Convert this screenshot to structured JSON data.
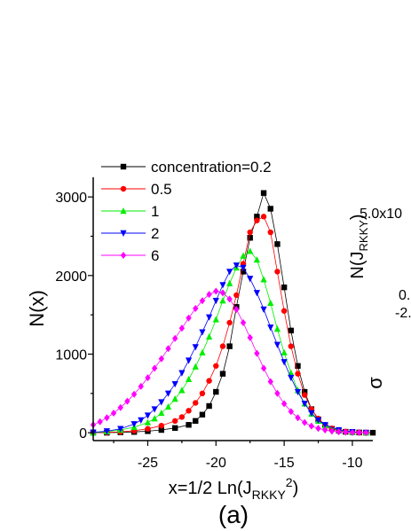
{
  "chart_data": {
    "type": "line",
    "xlabel_main": "x=1/2 Ln(J",
    "xlabel_sub": "RKKY",
    "xlabel_sup": "2",
    "xlabel_close": ")",
    "ylabel": "N(x)",
    "panel_label": "(a)",
    "xlim": [
      -29,
      -8.5
    ],
    "ylim": [
      -100,
      3250
    ],
    "x_ticks": [
      -25,
      -20,
      -15,
      -10
    ],
    "x_tick_labels": [
      "-25",
      "-20",
      "-15",
      "-10"
    ],
    "y_ticks": [
      0,
      1000,
      2000,
      3000
    ],
    "y_tick_labels": [
      "0",
      "1000",
      "2000",
      "3000"
    ],
    "legend_position": "top-left",
    "series": [
      {
        "name": "concentration=0.2",
        "color": "#000000",
        "marker": "square",
        "x": [
          -29,
          -28,
          -27,
          -26,
          -25,
          -24,
          -23,
          -22,
          -21.5,
          -21,
          -20.5,
          -20,
          -19.5,
          -19,
          -18.5,
          -18,
          -17.5,
          -17,
          -16.5,
          -16,
          -15.5,
          -15,
          -14.5,
          -14,
          -13.5,
          -13,
          -12.5,
          -12,
          -11.5,
          -11,
          -10.5,
          -10,
          -9.5,
          -9,
          -8.5
        ],
        "y": [
          0,
          0,
          5,
          10,
          20,
          35,
          60,
          100,
          150,
          230,
          340,
          520,
          750,
          1100,
          1600,
          2050,
          2480,
          2750,
          3050,
          2850,
          2400,
          1850,
          1300,
          850,
          520,
          300,
          170,
          90,
          50,
          25,
          12,
          6,
          3,
          1,
          0
        ]
      },
      {
        "name": "0.5",
        "color": "#ff0000",
        "marker": "circle",
        "x": [
          -29,
          -28,
          -27,
          -26,
          -25,
          -24,
          -23,
          -22.5,
          -22,
          -21.5,
          -21,
          -20.5,
          -20,
          -19.5,
          -19,
          -18.5,
          -18,
          -17.5,
          -17,
          -16.5,
          -16,
          -15.5,
          -15,
          -14.5,
          -14,
          -13.5,
          -13,
          -12.5,
          -12,
          -11.5,
          -11,
          -10.5,
          -10,
          -9.5,
          -9
        ],
        "y": [
          0,
          5,
          10,
          25,
          50,
          90,
          150,
          200,
          280,
          380,
          500,
          660,
          850,
          1100,
          1400,
          1750,
          2150,
          2550,
          2700,
          2750,
          2550,
          2050,
          1550,
          1100,
          750,
          480,
          300,
          180,
          100,
          55,
          30,
          15,
          7,
          3,
          0
        ]
      },
      {
        "name": "1",
        "color": "#00ee00",
        "marker": "triangle-up",
        "x": [
          -29,
          -28,
          -27,
          -26,
          -25,
          -24.5,
          -24,
          -23.5,
          -23,
          -22.5,
          -22,
          -21.5,
          -21,
          -20.5,
          -20,
          -19.5,
          -19,
          -18.5,
          -18,
          -17.5,
          -17,
          -16.5,
          -16,
          -15.5,
          -15,
          -14.5,
          -14,
          -13.5,
          -13,
          -12.5,
          -12,
          -11,
          -10,
          -9
        ],
        "y": [
          0,
          15,
          35,
          70,
          130,
          180,
          250,
          330,
          430,
          540,
          680,
          840,
          1020,
          1220,
          1440,
          1680,
          1900,
          2100,
          2250,
          2310,
          2200,
          1950,
          1650,
          1320,
          1020,
          760,
          540,
          370,
          240,
          150,
          90,
          30,
          8,
          0
        ]
      },
      {
        "name": "2",
        "color": "#0000ff",
        "marker": "triangle-down",
        "x": [
          -29,
          -28,
          -27,
          -26,
          -25.5,
          -25,
          -24.5,
          -24,
          -23.5,
          -23,
          -22.5,
          -22,
          -21.5,
          -21,
          -20.5,
          -20,
          -19.5,
          -19,
          -18.5,
          -18,
          -17.5,
          -17,
          -16.5,
          -16,
          -15.5,
          -15,
          -14.5,
          -14,
          -13.5,
          -13,
          -12.5,
          -12,
          -11,
          -10,
          -9
        ],
        "y": [
          5,
          20,
          50,
          110,
          160,
          220,
          300,
          390,
          500,
          620,
          760,
          920,
          1090,
          1280,
          1470,
          1680,
          1880,
          2050,
          2130,
          2100,
          1960,
          1780,
          1570,
          1340,
          1120,
          900,
          700,
          520,
          370,
          250,
          160,
          100,
          35,
          10,
          0
        ]
      },
      {
        "name": "6",
        "color": "#ff00ff",
        "marker": "diamond",
        "x": [
          -29,
          -28.5,
          -28,
          -27.5,
          -27,
          -26.5,
          -26,
          -25.5,
          -25,
          -24.5,
          -24,
          -23.5,
          -23,
          -22.5,
          -22,
          -21.5,
          -21,
          -20.5,
          -20,
          -19.5,
          -19,
          -18.5,
          -18,
          -17.5,
          -17,
          -16.5,
          -16,
          -15.5,
          -15,
          -14.5,
          -14,
          -13.5,
          -13,
          -12.5,
          -12,
          -11.5,
          -11,
          -10.5,
          -10,
          -9.5,
          -9
        ],
        "y": [
          100,
          140,
          190,
          250,
          320,
          400,
          490,
          590,
          700,
          820,
          940,
          1070,
          1200,
          1330,
          1460,
          1580,
          1680,
          1760,
          1800,
          1780,
          1700,
          1570,
          1400,
          1210,
          1010,
          820,
          650,
          500,
          370,
          270,
          190,
          130,
          85,
          55,
          35,
          20,
          12,
          7,
          3,
          2,
          0
        ]
      }
    ],
    "right_panel_texts": {
      "ylabel_N": "N(J",
      "ylabel_N_sub": "RKKY",
      "ylabel_N_close": ")",
      "value_top": "5.0x10",
      "value_mid": "0.",
      "value_mid2": "-2.",
      "sigma": "σ"
    }
  }
}
